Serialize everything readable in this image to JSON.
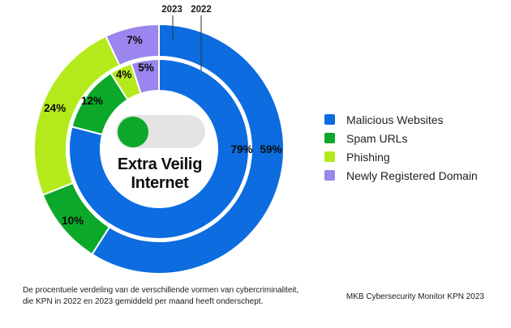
{
  "chart_data": {
    "type": "donut",
    "title": "Extra Veilig Internet",
    "center_title": {
      "line1": "Extra Veilig",
      "line2": "Internet"
    },
    "categories": [
      "Malicious Websites",
      "Spam URLs",
      "Phishing",
      "Newly Registered Domain"
    ],
    "colors": [
      "#0c6ce0",
      "#0ca82a",
      "#b4ea1c",
      "#9b85ee"
    ],
    "rings": [
      {
        "year": "2023",
        "position": "outer",
        "values": [
          59,
          10,
          24,
          7
        ]
      },
      {
        "year": "2022",
        "position": "inner",
        "values": [
          79,
          12,
          4,
          5
        ]
      }
    ],
    "value_format": "percent",
    "start_angle": "top",
    "direction": "clockwise",
    "legend_position": "right"
  },
  "legend": {
    "items": [
      {
        "label": "Malicious Websites",
        "color": "#0c6ce0"
      },
      {
        "label": "Spam URLs",
        "color": "#0ca82a"
      },
      {
        "label": "Phishing",
        "color": "#b4ea1c"
      },
      {
        "label": "Newly Registered Domain",
        "color": "#9b85ee"
      }
    ]
  },
  "center_toggle": {
    "name": "toggle-switch-icon",
    "knob_color": "#0ca82a",
    "track_color": "#e4e4e4",
    "state": "on"
  },
  "caption": {
    "line1": "De procentuele verdeling van de verschillende vormen van cybercriminaliteit,",
    "line2": "die KPN in 2022 en 2023 gemiddeld per maand heeft onderschept."
  },
  "source": "MKB Cybersecurity Monitor KPN 2023"
}
